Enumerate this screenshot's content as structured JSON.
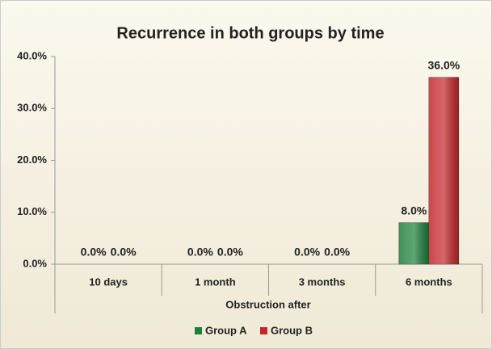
{
  "chart_data": {
    "type": "bar",
    "title": "Recurrence in both groups by time",
    "x_label": "Obstruction after",
    "categories": [
      "10 days",
      "1 month",
      "3 months",
      "6 months"
    ],
    "series": [
      {
        "name": "Group A",
        "color": "#1f7f3b",
        "values": [
          0,
          0,
          0,
          8
        ],
        "value_labels": [
          "0.0%",
          "0.0%",
          "0.0%",
          "8.0%"
        ]
      },
      {
        "name": "Group B",
        "color": "#c4262b",
        "values": [
          0,
          0,
          0,
          36
        ],
        "value_labels": [
          "0.0%",
          "0.0%",
          "0.0%",
          "36.0%"
        ]
      }
    ],
    "ylim": [
      0,
      40
    ],
    "yticks": [
      {
        "value": 0,
        "label": "0.0%"
      },
      {
        "value": 10,
        "label": "10.0%"
      },
      {
        "value": 20,
        "label": "20.0%"
      },
      {
        "value": 30,
        "label": "30.0%"
      },
      {
        "value": 40,
        "label": "40.0%"
      }
    ],
    "legend": "bottom"
  }
}
